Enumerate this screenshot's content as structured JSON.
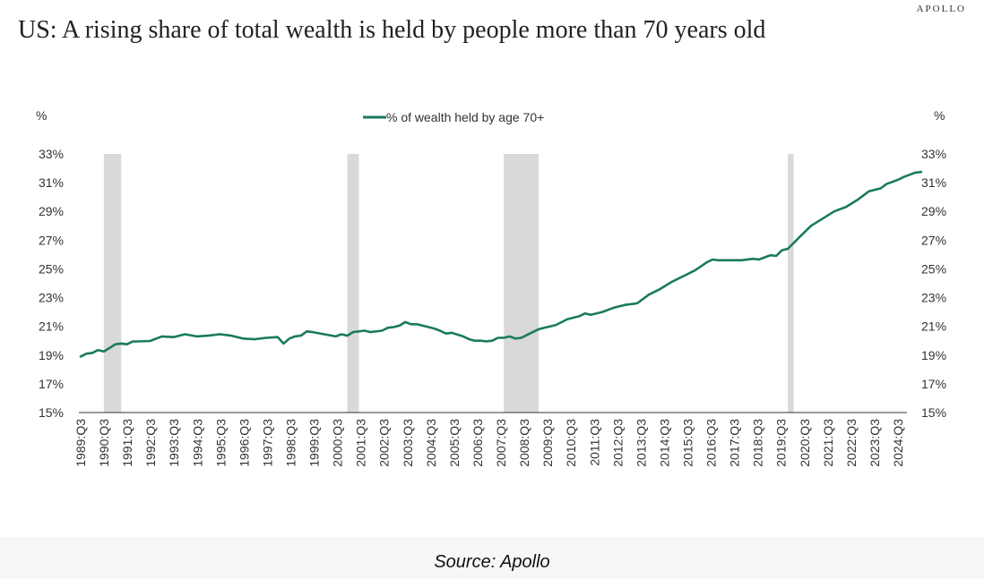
{
  "brand": "APOLLO",
  "source": "Source: Apollo",
  "chart_data": {
    "type": "line",
    "title": "US: A rising share of total wealth is held by people more than 70 years old",
    "ylabel_left": "%",
    "ylabel_right": "%",
    "ylim": [
      15,
      33
    ],
    "y_ticks": [
      "15%",
      "17%",
      "19%",
      "21%",
      "23%",
      "25%",
      "27%",
      "29%",
      "31%",
      "33%"
    ],
    "x_ticks": [
      "1989:Q3",
      "1990:Q3",
      "1991:Q3",
      "1992:Q3",
      "1993:Q3",
      "1994:Q3",
      "1995:Q3",
      "1996:Q3",
      "1997:Q3",
      "1998:Q3",
      "1999:Q3",
      "2000:Q3",
      "2001:Q3",
      "2002:Q3",
      "2003:Q3",
      "2004:Q3",
      "2005:Q3",
      "2006:Q3",
      "2007:Q3",
      "2008:Q3",
      "2009:Q3",
      "2010:Q3",
      "2011:Q3",
      "2012:Q3",
      "2013:Q3",
      "2014:Q3",
      "2015:Q3",
      "2016:Q3",
      "2017:Q3",
      "2018:Q3",
      "2019:Q3",
      "2020:Q3",
      "2021:Q3",
      "2022:Q3",
      "2023:Q3",
      "2024:Q3"
    ],
    "x_start": 1989.5,
    "x_end": 2025.0,
    "recessions": [
      [
        1990.5,
        1991.25
      ],
      [
        2001.0,
        2001.5
      ],
      [
        2007.75,
        2009.25
      ],
      [
        2020.0,
        2020.25
      ]
    ],
    "legend_position": "top-center",
    "color": "#1a7a60",
    "series": [
      {
        "name": "% of wealth held by age 70+",
        "points": [
          [
            1989.5,
            18.9
          ],
          [
            1989.75,
            19.1
          ],
          [
            1990.0,
            19.15
          ],
          [
            1990.25,
            19.35
          ],
          [
            1990.5,
            19.25
          ],
          [
            1990.75,
            19.5
          ],
          [
            1991.0,
            19.75
          ],
          [
            1991.25,
            19.8
          ],
          [
            1991.5,
            19.75
          ],
          [
            1991.75,
            19.95
          ],
          [
            1992.0,
            19.95
          ],
          [
            1992.5,
            19.98
          ],
          [
            1993.0,
            20.3
          ],
          [
            1993.5,
            20.25
          ],
          [
            1994.0,
            20.45
          ],
          [
            1994.5,
            20.3
          ],
          [
            1995.0,
            20.35
          ],
          [
            1995.5,
            20.45
          ],
          [
            1996.0,
            20.35
          ],
          [
            1996.5,
            20.15
          ],
          [
            1997.0,
            20.1
          ],
          [
            1997.5,
            20.2
          ],
          [
            1998.0,
            20.25
          ],
          [
            1998.25,
            19.8
          ],
          [
            1998.5,
            20.15
          ],
          [
            1998.75,
            20.3
          ],
          [
            1999.0,
            20.35
          ],
          [
            1999.25,
            20.65
          ],
          [
            1999.5,
            20.6
          ],
          [
            2000.0,
            20.45
          ],
          [
            2000.5,
            20.3
          ],
          [
            2000.75,
            20.45
          ],
          [
            2001.0,
            20.35
          ],
          [
            2001.25,
            20.6
          ],
          [
            2001.75,
            20.7
          ],
          [
            2002.0,
            20.6
          ],
          [
            2002.5,
            20.7
          ],
          [
            2002.75,
            20.9
          ],
          [
            2003.0,
            20.95
          ],
          [
            2003.25,
            21.05
          ],
          [
            2003.5,
            21.3
          ],
          [
            2003.75,
            21.15
          ],
          [
            2004.0,
            21.15
          ],
          [
            2004.5,
            20.95
          ],
          [
            2004.75,
            20.85
          ],
          [
            2005.0,
            20.7
          ],
          [
            2005.25,
            20.5
          ],
          [
            2005.5,
            20.55
          ],
          [
            2006.0,
            20.3
          ],
          [
            2006.25,
            20.1
          ],
          [
            2006.5,
            20.0
          ],
          [
            2006.75,
            20.0
          ],
          [
            2007.0,
            19.95
          ],
          [
            2007.25,
            20.0
          ],
          [
            2007.5,
            20.2
          ],
          [
            2007.75,
            20.2
          ],
          [
            2008.0,
            20.3
          ],
          [
            2008.25,
            20.15
          ],
          [
            2008.5,
            20.2
          ],
          [
            2008.75,
            20.4
          ],
          [
            2009.0,
            20.6
          ],
          [
            2009.25,
            20.8
          ],
          [
            2009.5,
            20.9
          ],
          [
            2009.75,
            21.0
          ],
          [
            2010.0,
            21.1
          ],
          [
            2010.5,
            21.5
          ],
          [
            2011.0,
            21.7
          ],
          [
            2011.25,
            21.9
          ],
          [
            2011.5,
            21.8
          ],
          [
            2011.75,
            21.9
          ],
          [
            2012.0,
            22.0
          ],
          [
            2012.5,
            22.3
          ],
          [
            2013.0,
            22.5
          ],
          [
            2013.25,
            22.55
          ],
          [
            2013.5,
            22.6
          ],
          [
            2014.0,
            23.2
          ],
          [
            2014.5,
            23.6
          ],
          [
            2015.0,
            24.1
          ],
          [
            2015.5,
            24.5
          ],
          [
            2016.0,
            24.9
          ],
          [
            2016.5,
            25.45
          ],
          [
            2016.75,
            25.65
          ],
          [
            2017.0,
            25.6
          ],
          [
            2017.25,
            25.6
          ],
          [
            2017.5,
            25.6
          ],
          [
            2018.0,
            25.6
          ],
          [
            2018.5,
            25.7
          ],
          [
            2018.75,
            25.65
          ],
          [
            2019.0,
            25.8
          ],
          [
            2019.25,
            25.95
          ],
          [
            2019.5,
            25.9
          ],
          [
            2019.75,
            26.3
          ],
          [
            2020.0,
            26.4
          ],
          [
            2020.25,
            26.8
          ],
          [
            2020.5,
            27.2
          ],
          [
            2020.75,
            27.6
          ],
          [
            2021.0,
            28.0
          ],
          [
            2021.5,
            28.5
          ],
          [
            2022.0,
            29.0
          ],
          [
            2022.5,
            29.3
          ],
          [
            2023.0,
            29.8
          ],
          [
            2023.5,
            30.4
          ],
          [
            2023.75,
            30.5
          ],
          [
            2024.0,
            30.6
          ],
          [
            2024.25,
            30.9
          ],
          [
            2024.5,
            31.05
          ],
          [
            2024.75,
            31.2
          ],
          [
            2025.0,
            31.4
          ],
          [
            2025.25,
            31.55
          ],
          [
            2025.5,
            31.7
          ],
          [
            2025.75,
            31.75
          ]
        ]
      }
    ]
  }
}
